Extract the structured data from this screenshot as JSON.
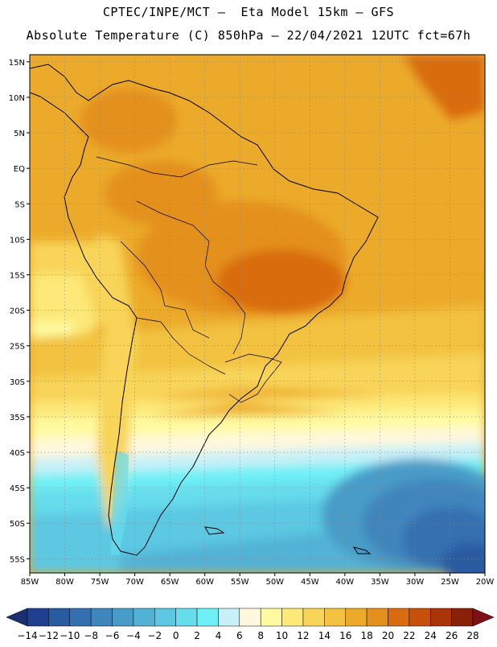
{
  "title": {
    "line1": "CPTEC/INPE/MCT –  Eta Model 15km – GFS",
    "line2": "Absolute Temperature (C) 850hPa – 22/04/2021 12UTC fct=67h"
  },
  "map": {
    "lon_ticks": [
      "85W",
      "80W",
      "75W",
      "70W",
      "65W",
      "60W",
      "55W",
      "50W",
      "45W",
      "40W",
      "35W",
      "30W",
      "25W",
      "20W"
    ],
    "lat_ticks": [
      "15N",
      "10N",
      "5N",
      "EQ",
      "5S",
      "10S",
      "15S",
      "20S",
      "25S",
      "30S",
      "35S",
      "40S",
      "45S",
      "50S",
      "55S"
    ],
    "lon_range": [
      -85,
      -20
    ],
    "lat_range": [
      -57,
      16
    ]
  },
  "colorbar": {
    "labels": [
      "-14",
      "-12",
      "-10",
      "-8",
      "-6",
      "-4",
      "-2",
      "0",
      "2",
      "4",
      "6",
      "8",
      "10",
      "12",
      "14",
      "16",
      "18",
      "20",
      "22",
      "24",
      "26",
      "28"
    ],
    "colors": [
      "#1f3f8f",
      "#2a5aa0",
      "#3470b0",
      "#3f86bd",
      "#4a9cc8",
      "#52b2d6",
      "#5cc8e2",
      "#66dcec",
      "#6ff0f6",
      "#c8f0f8",
      "#fff8dc",
      "#fffaa0",
      "#fde878",
      "#f8d458",
      "#f2c240",
      "#ecaa2a",
      "#e4901c",
      "#d96c10",
      "#c6500c",
      "#aa3408",
      "#8a2008"
    ],
    "under_color": "#1a2f70",
    "over_color": "#801018"
  }
}
